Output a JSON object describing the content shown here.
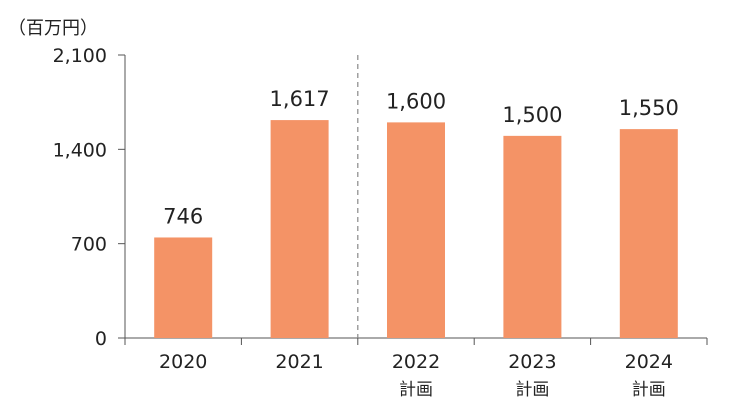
{
  "colors": {
    "bar": "#F49366",
    "axis": "#555555",
    "text": "#222222",
    "divider": "#888888"
  },
  "chart_data": {
    "type": "bar",
    "unit_label": "（百万円）",
    "categories": [
      "2020",
      "2021",
      "2022",
      "2023",
      "2024"
    ],
    "category_sublabels": [
      "",
      "",
      "計画",
      "計画",
      "計画"
    ],
    "values": [
      746,
      1617,
      1600,
      1500,
      1550
    ],
    "value_labels": [
      "746",
      "1,617",
      "1,600",
      "1,500",
      "1,550"
    ],
    "ylim": [
      0,
      2100
    ],
    "yticks": [
      0,
      700,
      1400,
      2100
    ],
    "ytick_labels": [
      "0",
      "700",
      "1,400",
      "2,100"
    ],
    "grid": false,
    "legend": "none",
    "actual_plan_divider": true
  }
}
